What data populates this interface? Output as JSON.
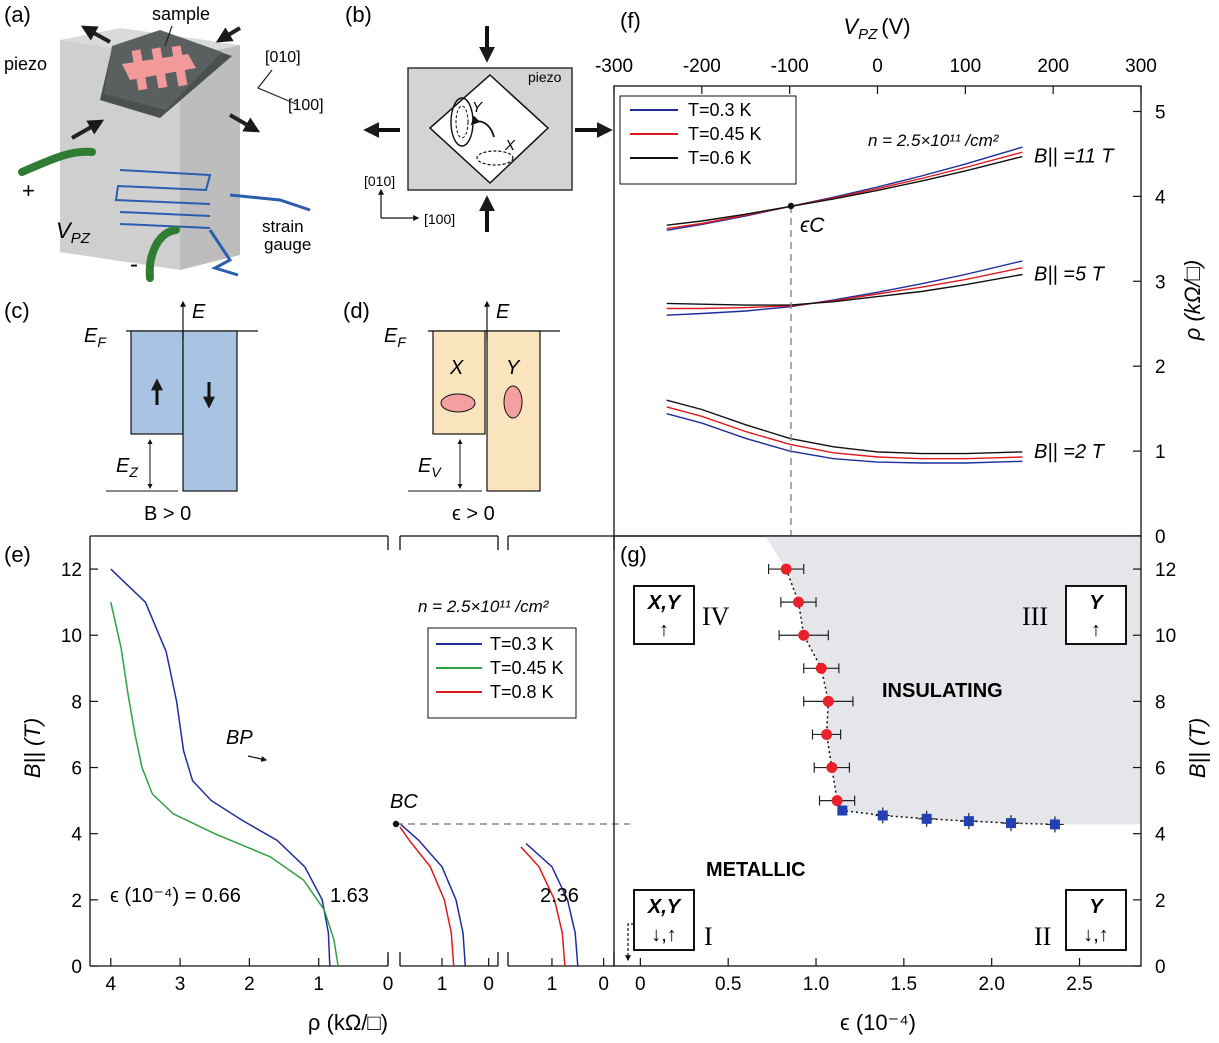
{
  "panel_labels": {
    "a": "(a)",
    "b": "(b)",
    "c": "(c)",
    "d": "(d)",
    "e": "(e)",
    "f": "(f)",
    "g": "(g)"
  },
  "panel_a": {
    "sample": "sample",
    "piezo": "piezo",
    "dir1": "[010]",
    "dir2": "[100]",
    "plus": "+",
    "minus": "-",
    "vpz": "V",
    "vpz_sub": "PZ",
    "strain1": "strain",
    "strain2": "gauge",
    "colors": {
      "block": "#d8d8d8",
      "sample": "#444a4a",
      "hallbar": "#f29a9a",
      "wire": "#2e7d32",
      "gauge": "#2a5db0"
    }
  },
  "panel_b": {
    "piezo": "piezo",
    "valley_y": "Y",
    "valley_x": "X",
    "dir1": "[010]",
    "dir2": "[100]"
  },
  "panel_c": {
    "ef": "E",
    "ef_sub": "F",
    "energy": "E",
    "ez": "E",
    "ez_sub": "Z",
    "condition": "B > 0",
    "color": "#a9c3e3"
  },
  "panel_d": {
    "ef": "E",
    "ef_sub": "F",
    "energy": "E",
    "ev": "E",
    "ev_sub": "V",
    "valley_x": "X",
    "valley_y": "Y",
    "condition": "ϵ > 0",
    "color": "#f9e4bd",
    "ellipse_color": "#f4a0a0"
  },
  "panel_f": {
    "chart_data": {
      "type": "line",
      "xlabel": "V",
      "xlabel_sub": "PZ",
      "xlabel_unit": "(V)",
      "ylabel": "ρ (kΩ/□)",
      "xlim": [
        -300,
        300
      ],
      "ylim": [
        0,
        5.3
      ],
      "xticks": [
        "-300",
        "-200",
        "-100",
        "0",
        "100",
        "200",
        "300"
      ],
      "yticks": [
        "0",
        "1",
        "2",
        "3",
        "4",
        "5"
      ],
      "density_label": "n = 2.5×10¹¹ /cm²",
      "legend": {
        "entries": [
          "T=0.3 K",
          "T=0.45 K",
          "T=0.6 K"
        ],
        "colors": [
          "#1f2d9c",
          "#e0191c",
          "#111111"
        ]
      },
      "crossing_label": "ϵC",
      "crossing_vpz": -100,
      "groups": [
        {
          "label": "B|| =11 T",
          "series": [
            {
              "x": [
                -240,
                -200,
                -150,
                -100,
                -50,
                0,
                50,
                100,
                165
              ],
              "y": [
                3.6,
                3.67,
                3.77,
                3.88,
                3.99,
                4.11,
                4.24,
                4.38,
                4.58
              ]
            },
            {
              "x": [
                -240,
                -200,
                -150,
                -100,
                -50,
                0,
                50,
                100,
                165
              ],
              "y": [
                3.62,
                3.68,
                3.78,
                3.88,
                3.98,
                4.09,
                4.21,
                4.34,
                4.52
              ]
            },
            {
              "x": [
                -240,
                -200,
                -150,
                -100,
                -50,
                0,
                50,
                100,
                165
              ],
              "y": [
                3.66,
                3.71,
                3.79,
                3.88,
                3.97,
                4.07,
                4.18,
                4.3,
                4.47
              ]
            }
          ]
        },
        {
          "label": "B|| =5 T",
          "series": [
            {
              "x": [
                -240,
                -200,
                -150,
                -100,
                -50,
                0,
                50,
                100,
                165
              ],
              "y": [
                2.6,
                2.62,
                2.65,
                2.7,
                2.78,
                2.87,
                2.97,
                3.08,
                3.24
              ]
            },
            {
              "x": [
                -240,
                -200,
                -150,
                -100,
                -50,
                0,
                50,
                100,
                165
              ],
              "y": [
                2.68,
                2.68,
                2.69,
                2.71,
                2.77,
                2.85,
                2.93,
                3.02,
                3.16
              ]
            },
            {
              "x": [
                -240,
                -200,
                -150,
                -100,
                -50,
                0,
                50,
                100,
                165
              ],
              "y": [
                2.74,
                2.73,
                2.72,
                2.72,
                2.76,
                2.82,
                2.88,
                2.96,
                3.08
              ]
            }
          ]
        },
        {
          "label": "B|| =2 T",
          "series": [
            {
              "x": [
                -240,
                -200,
                -150,
                -100,
                -50,
                0,
                50,
                100,
                165
              ],
              "y": [
                1.44,
                1.33,
                1.15,
                1.0,
                0.91,
                0.87,
                0.86,
                0.86,
                0.88
              ]
            },
            {
              "x": [
                -240,
                -200,
                -150,
                -100,
                -50,
                0,
                50,
                100,
                165
              ],
              "y": [
                1.52,
                1.41,
                1.23,
                1.08,
                0.98,
                0.93,
                0.91,
                0.91,
                0.93
              ]
            },
            {
              "x": [
                -240,
                -200,
                -150,
                -100,
                -50,
                0,
                50,
                100,
                165
              ],
              "y": [
                1.6,
                1.49,
                1.31,
                1.15,
                1.05,
                0.99,
                0.97,
                0.97,
                0.99
              ]
            }
          ]
        }
      ]
    }
  },
  "panel_e": {
    "chart_data": {
      "type": "line",
      "xlabel": "ρ (kΩ/□)",
      "ylabel": "B|| (T)",
      "ylim": [
        0,
        13
      ],
      "yticks": [
        "0",
        "2",
        "4",
        "6",
        "8",
        "10",
        "12"
      ],
      "density_label": "n = 2.5×10¹¹ /cm²",
      "legend": {
        "entries": [
          "T=0.3 K",
          "T=0.45 K",
          "T=0.8 K"
        ],
        "colors": [
          "#1f2d9c",
          "#2ea043",
          "#e0191c"
        ]
      },
      "crossing_label": "BC",
      "bp_label": "BP",
      "strain_labels": [
        "ϵ (10⁻⁴) = 0.66",
        "1.63",
        "2.36"
      ],
      "subplots": [
        {
          "xlim": [
            4.3,
            0
          ],
          "xticks": [
            "4",
            "3",
            "2",
            "1",
            "0"
          ],
          "series": [
            {
              "name": "T=0.3 K",
              "color": "#1f2d9c",
              "rho": [
                0.84,
                0.86,
                0.95,
                1.2,
                1.6,
                2.1,
                2.55,
                2.82,
                2.95,
                3.05,
                3.2,
                3.5,
                4.0
              ],
              "b": [
                0,
                1,
                2,
                3,
                3.8,
                4.4,
                5.0,
                5.6,
                6.5,
                8,
                9.5,
                11,
                12
              ]
            },
            {
              "name": "T=0.45 K",
              "color": "#2ea043",
              "rho": [
                0.72,
                0.78,
                0.92,
                1.22,
                1.7,
                2.5,
                3.1,
                3.4,
                3.55,
                3.65,
                3.75,
                3.85,
                4.0
              ],
              "b": [
                0,
                0.8,
                1.7,
                2.6,
                3.3,
                4.0,
                4.6,
                5.2,
                6.0,
                7.0,
                8.2,
                9.6,
                11
              ]
            }
          ]
        },
        {
          "xlim": [
            1.9,
            -0.2
          ],
          "xticks": [
            "1",
            "0"
          ],
          "series": [
            {
              "name": "T=0.3 K",
              "color": "#1f2d9c",
              "rho": [
                0.5,
                0.55,
                0.7,
                1.0,
                1.5,
                1.9
              ],
              "b": [
                0,
                1,
                2,
                3,
                3.8,
                4.3
              ]
            },
            {
              "name": "T=0.8 K",
              "color": "#e0191c",
              "rho": [
                0.75,
                0.8,
                0.95,
                1.25,
                1.7,
                1.9
              ],
              "b": [
                0,
                1,
                2,
                3,
                3.8,
                4.2
              ]
            }
          ]
        },
        {
          "xlim": [
            1.85,
            -0.2
          ],
          "xticks": [
            "1",
            "0"
          ],
          "series": [
            {
              "name": "T=0.3 K",
              "color": "#1f2d9c",
              "rho": [
                0.5,
                0.55,
                0.7,
                1.0,
                1.5
              ],
              "b": [
                0,
                1,
                2,
                3,
                3.7
              ]
            },
            {
              "name": "T=0.8 K",
              "color": "#e0191c",
              "rho": [
                0.75,
                0.8,
                0.95,
                1.25,
                1.6
              ],
              "b": [
                0,
                1,
                2,
                3,
                3.6
              ]
            }
          ]
        }
      ]
    }
  },
  "panel_g": {
    "chart_data": {
      "type": "scatter",
      "xlabel": "ϵ (10⁻⁴)",
      "ylabel": "B|| (T)",
      "xlim": [
        -0.15,
        2.85
      ],
      "ylim": [
        0,
        13
      ],
      "xticks": [
        "0",
        "0.5",
        "1.0",
        "1.5",
        "2.0",
        "2.5"
      ],
      "yticks": [
        "0",
        "2",
        "4",
        "6",
        "8",
        "10",
        "12"
      ],
      "regions": {
        "insulating": "INSULATING",
        "metallic": "METALLIC"
      },
      "phase_labels": [
        "IV",
        "III",
        "I",
        "II"
      ],
      "boxes": [
        {
          "top": "X,Y",
          "bottom": "↑"
        },
        {
          "top": "Y",
          "bottom": "↑"
        },
        {
          "top": "X,Y",
          "bottom": "↓,↑"
        },
        {
          "top": "Y",
          "bottom": "↓,↑"
        }
      ],
      "red_points": {
        "color": "#e8212a",
        "x": [
          0.83,
          0.9,
          0.93,
          1.03,
          1.07,
          1.06,
          1.09,
          1.12
        ],
        "y": [
          12,
          11,
          10,
          9,
          8,
          7,
          6,
          5
        ],
        "xerr": [
          0.1,
          0.1,
          0.14,
          0.1,
          0.14,
          0.08,
          0.1,
          0.1
        ]
      },
      "blue_points": {
        "color": "#2340b2",
        "x": [
          1.15,
          1.38,
          1.63,
          1.87,
          2.11,
          2.36
        ],
        "y": [
          4.7,
          4.55,
          4.45,
          4.38,
          4.32,
          4.28
        ],
        "xerr": [
          0,
          0.04,
          0.05,
          0.05,
          0.05,
          0.05
        ]
      },
      "shade_color": "#e4e6ea"
    }
  }
}
